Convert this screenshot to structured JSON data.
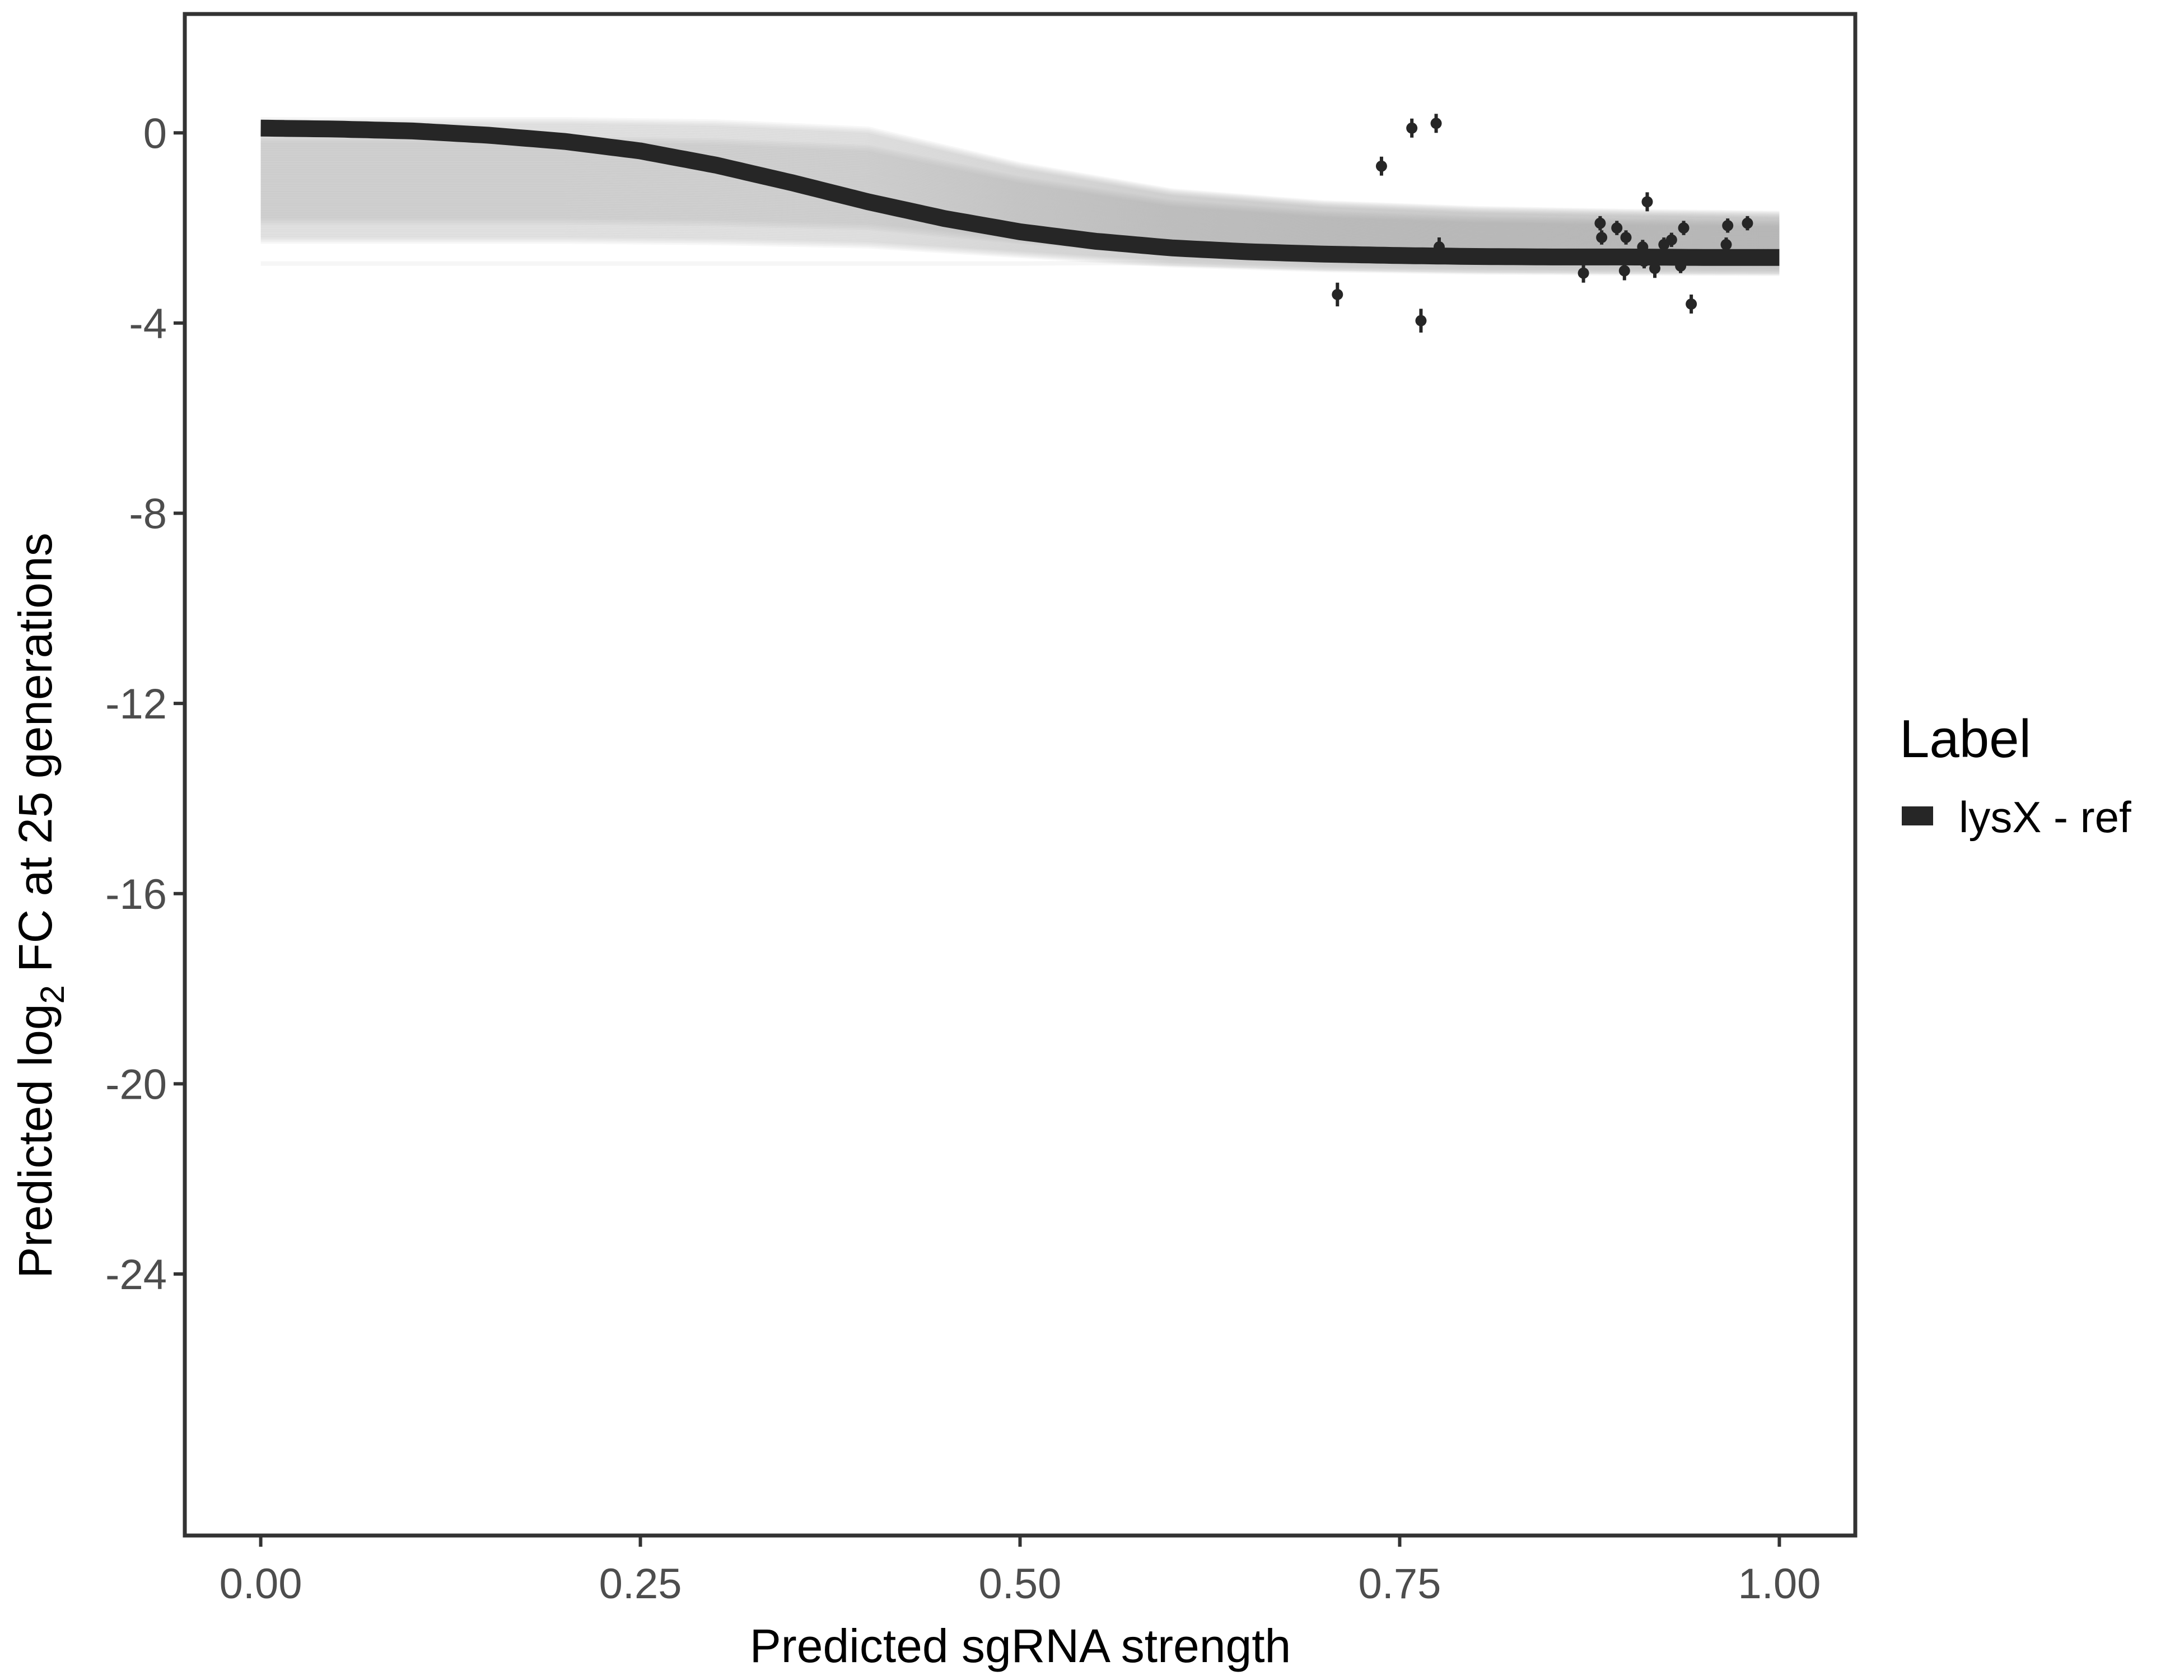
{
  "chart_data": {
    "type": "line",
    "xlabel": "Predicted sgRNA strength",
    "ylabel": {
      "prefix": "Predicted  log",
      "subscript": "2",
      "suffix": " FC at 25 generations"
    },
    "xlim": [
      -0.05,
      1.05
    ],
    "ylim": [
      -29.5,
      2.5
    ],
    "x_ticks": [
      0,
      0.25,
      0.5,
      0.75,
      1
    ],
    "x_tick_labels": [
      "0.00",
      "0.25",
      "0.50",
      "0.75",
      "1.00"
    ],
    "y_ticks": [
      0,
      -4,
      -8,
      -12,
      -16,
      -20,
      -24
    ],
    "y_tick_labels": [
      "0",
      "-4",
      "-8",
      "-12",
      "-16",
      "-20",
      "-24"
    ],
    "grid": false,
    "legend": {
      "title": "Label",
      "position": "right",
      "entries": [
        {
          "label": "lysX - ref",
          "color": "#262626"
        }
      ]
    },
    "series": [
      {
        "name": "lysX - ref",
        "kind": "fitted_curve",
        "color": "#262626",
        "x": [
          0,
          0.05,
          0.1,
          0.15,
          0.2,
          0.25,
          0.3,
          0.35,
          0.4,
          0.45,
          0.5,
          0.55,
          0.6,
          0.65,
          0.7,
          0.75,
          0.8,
          0.85,
          0.9,
          0.95,
          1.0
        ],
        "y": [
          0.1,
          0.08,
          0.04,
          -0.05,
          -0.18,
          -0.38,
          -0.68,
          -1.05,
          -1.45,
          -1.8,
          -2.08,
          -2.28,
          -2.42,
          -2.5,
          -2.55,
          -2.58,
          -2.6,
          -2.61,
          -2.61,
          -2.62,
          -2.62
        ]
      },
      {
        "name": "posterior draws",
        "kind": "ribbon_draws",
        "color": "#a6a6a6",
        "x": [
          0,
          0.1,
          0.2,
          0.3,
          0.4,
          0.5,
          0.6,
          0.7,
          0.8,
          0.9,
          1.0
        ],
        "upper": [
          0.25,
          0.25,
          0.25,
          0.2,
          0.05,
          -0.7,
          -1.25,
          -1.5,
          -1.62,
          -1.68,
          -1.72
        ],
        "lower": [
          -2.25,
          -2.25,
          -2.25,
          -2.28,
          -2.35,
          -2.55,
          -2.75,
          -2.85,
          -2.9,
          -2.92,
          -2.93
        ],
        "faint_lower": -2.75
      },
      {
        "name": "observed",
        "kind": "points_with_error",
        "color": "#262626",
        "points": [
          {
            "x": 0.709,
            "y": -3.4,
            "err": 0.25
          },
          {
            "x": 0.738,
            "y": -0.7,
            "err": 0.2
          },
          {
            "x": 0.758,
            "y": 0.1,
            "err": 0.2
          },
          {
            "x": 0.764,
            "y": -3.95,
            "err": 0.25
          },
          {
            "x": 0.774,
            "y": 0.2,
            "err": 0.2
          },
          {
            "x": 0.776,
            "y": -2.4,
            "err": 0.2
          },
          {
            "x": 0.871,
            "y": -2.95,
            "err": 0.2
          },
          {
            "x": 0.882,
            "y": -1.9,
            "err": 0.15
          },
          {
            "x": 0.883,
            "y": -2.2,
            "err": 0.15
          },
          {
            "x": 0.893,
            "y": -2.0,
            "err": 0.15
          },
          {
            "x": 0.897,
            "y": -2.6,
            "err": 0.15
          },
          {
            "x": 0.898,
            "y": -2.9,
            "err": 0.2
          },
          {
            "x": 0.899,
            "y": -2.2,
            "err": 0.15
          },
          {
            "x": 0.91,
            "y": -2.4,
            "err": 0.15
          },
          {
            "x": 0.911,
            "y": -2.7,
            "err": 0.15
          },
          {
            "x": 0.913,
            "y": -1.45,
            "err": 0.2
          },
          {
            "x": 0.918,
            "y": -2.85,
            "err": 0.2
          },
          {
            "x": 0.924,
            "y": -2.35,
            "err": 0.15
          },
          {
            "x": 0.929,
            "y": -2.25,
            "err": 0.15
          },
          {
            "x": 0.935,
            "y": -2.8,
            "err": 0.15
          },
          {
            "x": 0.937,
            "y": -2.0,
            "err": 0.15
          },
          {
            "x": 0.942,
            "y": -3.6,
            "err": 0.2
          },
          {
            "x": 0.965,
            "y": -2.35,
            "err": 0.15
          },
          {
            "x": 0.966,
            "y": -1.95,
            "err": 0.15
          },
          {
            "x": 0.979,
            "y": -1.9,
            "err": 0.15
          }
        ]
      }
    ]
  }
}
